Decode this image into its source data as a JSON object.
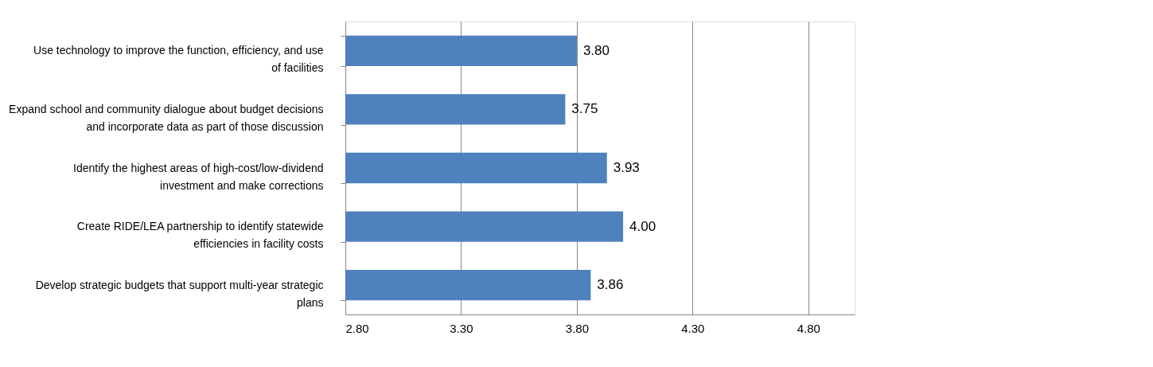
{
  "chart_data": {
    "type": "bar",
    "orientation": "horizontal",
    "categories": [
      "Use technology to improve the function, efficiency, and use of facilities",
      "Expand school and community dialogue about budget decisions and incorporate data as part of those discussion",
      "Identify the highest areas of high-cost/low-dividend investment and make corrections",
      "Create RIDE/LEA partnership to identify statewide efficiencies in facility costs",
      "Develop strategic budgets that support multi-year strategic plans"
    ],
    "values": [
      3.8,
      3.75,
      3.93,
      4.0,
      3.86
    ],
    "value_labels": [
      "3.80",
      "3.75",
      "3.93",
      "4.00",
      "3.86"
    ],
    "color": "#4f81bd",
    "xlim": [
      2.8,
      5.0
    ],
    "xticks": [
      {
        "value": 2.8,
        "label": "2.80"
      },
      {
        "value": 3.3,
        "label": "3.30"
      },
      {
        "value": 3.8,
        "label": "3.80"
      },
      {
        "value": 4.3,
        "label": "4.30"
      },
      {
        "value": 4.8,
        "label": "4.80"
      }
    ],
    "grid": "x"
  }
}
